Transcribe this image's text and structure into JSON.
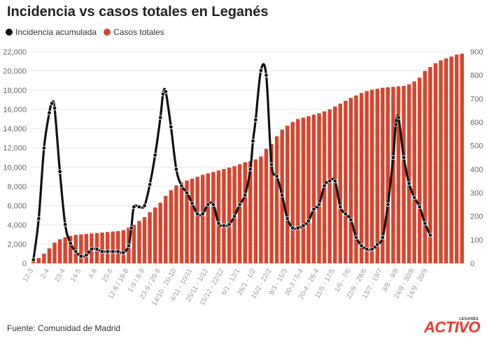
{
  "title": "Incidencia vs casos totales en Leganés",
  "source": "Fuente: Comunidad de Madrid",
  "logo": {
    "text": "ACTIVO",
    "subtext": "LEGANÉS"
  },
  "colors": {
    "bars": "#d6452e",
    "line": "#111111",
    "grid": "#e6e6e6",
    "axis_text": "#666666",
    "x_tick_text": "#9a9a9a"
  },
  "chart_data": {
    "type": "bar+line",
    "legend": [
      {
        "name": "Incidencia acumulada",
        "color": "#111111",
        "position": "top-left"
      },
      {
        "name": "Casos totales",
        "color": "#d6452e"
      }
    ],
    "left_axis": {
      "ylim": [
        0,
        22000
      ],
      "ticks": [
        0,
        2000,
        4000,
        6000,
        8000,
        10000,
        12000,
        14000,
        16000,
        18000,
        20000,
        22000
      ]
    },
    "right_axis": {
      "ylim": [
        0,
        900
      ],
      "ticks": [
        0,
        100,
        200,
        300,
        400,
        500,
        600,
        700,
        800,
        900
      ]
    },
    "x_tick_labels": [
      "12-3",
      "2-4",
      "23-4",
      "14-5",
      "4-6",
      "25-6",
      "12-8 / 18-8",
      "1-9 / 8-9",
      "23-9 / 29-9",
      "14/10 - 20-10",
      "4/11 - 10/11",
      "25/11 - 1/12",
      "15/12 - 22/12",
      "6/1 - 12/1",
      "26/1 - 1/2",
      "16/2 - 22/2",
      "9/3 - 15/3",
      "30-3 / 5-4",
      "20-4 - 26-4",
      "11/5 - 17/5",
      "1/6 - 7/6",
      "22/6 - 28/6",
      "13/7 - 19/7",
      "3/8 - 9/8",
      "24/8 - 30/8",
      "14/9 - 20/9"
    ],
    "x_tick_positions": [
      0,
      3,
      6,
      9,
      12,
      15,
      18,
      21,
      24,
      27,
      30,
      33,
      36,
      39,
      42,
      45,
      48,
      51,
      54,
      57,
      60,
      63,
      66,
      69,
      72,
      74.5
    ],
    "bar_series": {
      "name": "Casos totales",
      "axis": "left",
      "values": [
        200,
        550,
        1000,
        1550,
        2150,
        2500,
        2700,
        2850,
        2950,
        3000,
        3050,
        3100,
        3150,
        3200,
        3250,
        3300,
        3350,
        3450,
        3700,
        4000,
        4400,
        4800,
        5300,
        5800,
        6300,
        7000,
        7600,
        8100,
        8400,
        8600,
        8800,
        9000,
        9200,
        9350,
        9500,
        9650,
        9800,
        9950,
        10100,
        10300,
        10500,
        10600,
        10800,
        11100,
        11900,
        12400,
        13200,
        13900,
        14300,
        14700,
        15000,
        15150,
        15300,
        15450,
        15600,
        15800,
        16000,
        16300,
        16600,
        16900,
        17200,
        17450,
        17700,
        17900,
        18050,
        18150,
        18250,
        18300,
        18350,
        18400,
        18450,
        18600,
        18900,
        19300,
        20000,
        20400,
        20800,
        21100,
        21300,
        21500,
        21700,
        21800
      ]
    },
    "line_series": {
      "name": "Incidencia acumulada",
      "axis": "right",
      "x": [
        0,
        1,
        2,
        3,
        3.5,
        4,
        5,
        6,
        7,
        8,
        9,
        10,
        11,
        12,
        13,
        14,
        15,
        16,
        17,
        18,
        18.5,
        19,
        20,
        21,
        22,
        23,
        24,
        24.5,
        25,
        26,
        27,
        28,
        29,
        30,
        31,
        32,
        33,
        34,
        35,
        36,
        37,
        38,
        39,
        40,
        41,
        41.5,
        42,
        43,
        44,
        45,
        46,
        47,
        48,
        49,
        50,
        51,
        52,
        53,
        54,
        55,
        56,
        57,
        58,
        59,
        60,
        61,
        62,
        63,
        64,
        65,
        66,
        67,
        68,
        68.5,
        69,
        70,
        71,
        72,
        73,
        74,
        75
      ],
      "values": [
        15,
        190,
        490,
        640,
        680,
        660,
        390,
        165,
        85,
        50,
        30,
        35,
        60,
        60,
        50,
        50,
        50,
        50,
        45,
        75,
        150,
        240,
        240,
        245,
        335,
        460,
        620,
        720,
        730,
        580,
        400,
        330,
        300,
        255,
        210,
        210,
        250,
        250,
        170,
        160,
        165,
        200,
        250,
        290,
        400,
        520,
        610,
        820,
        800,
        420,
        370,
        290,
        190,
        150,
        150,
        160,
        180,
        230,
        250,
        330,
        350,
        350,
        240,
        210,
        185,
        110,
        75,
        60,
        60,
        80,
        110,
        250,
        450,
        590,
        620,
        450,
        340,
        280,
        240,
        170,
        120
      ]
    }
  }
}
